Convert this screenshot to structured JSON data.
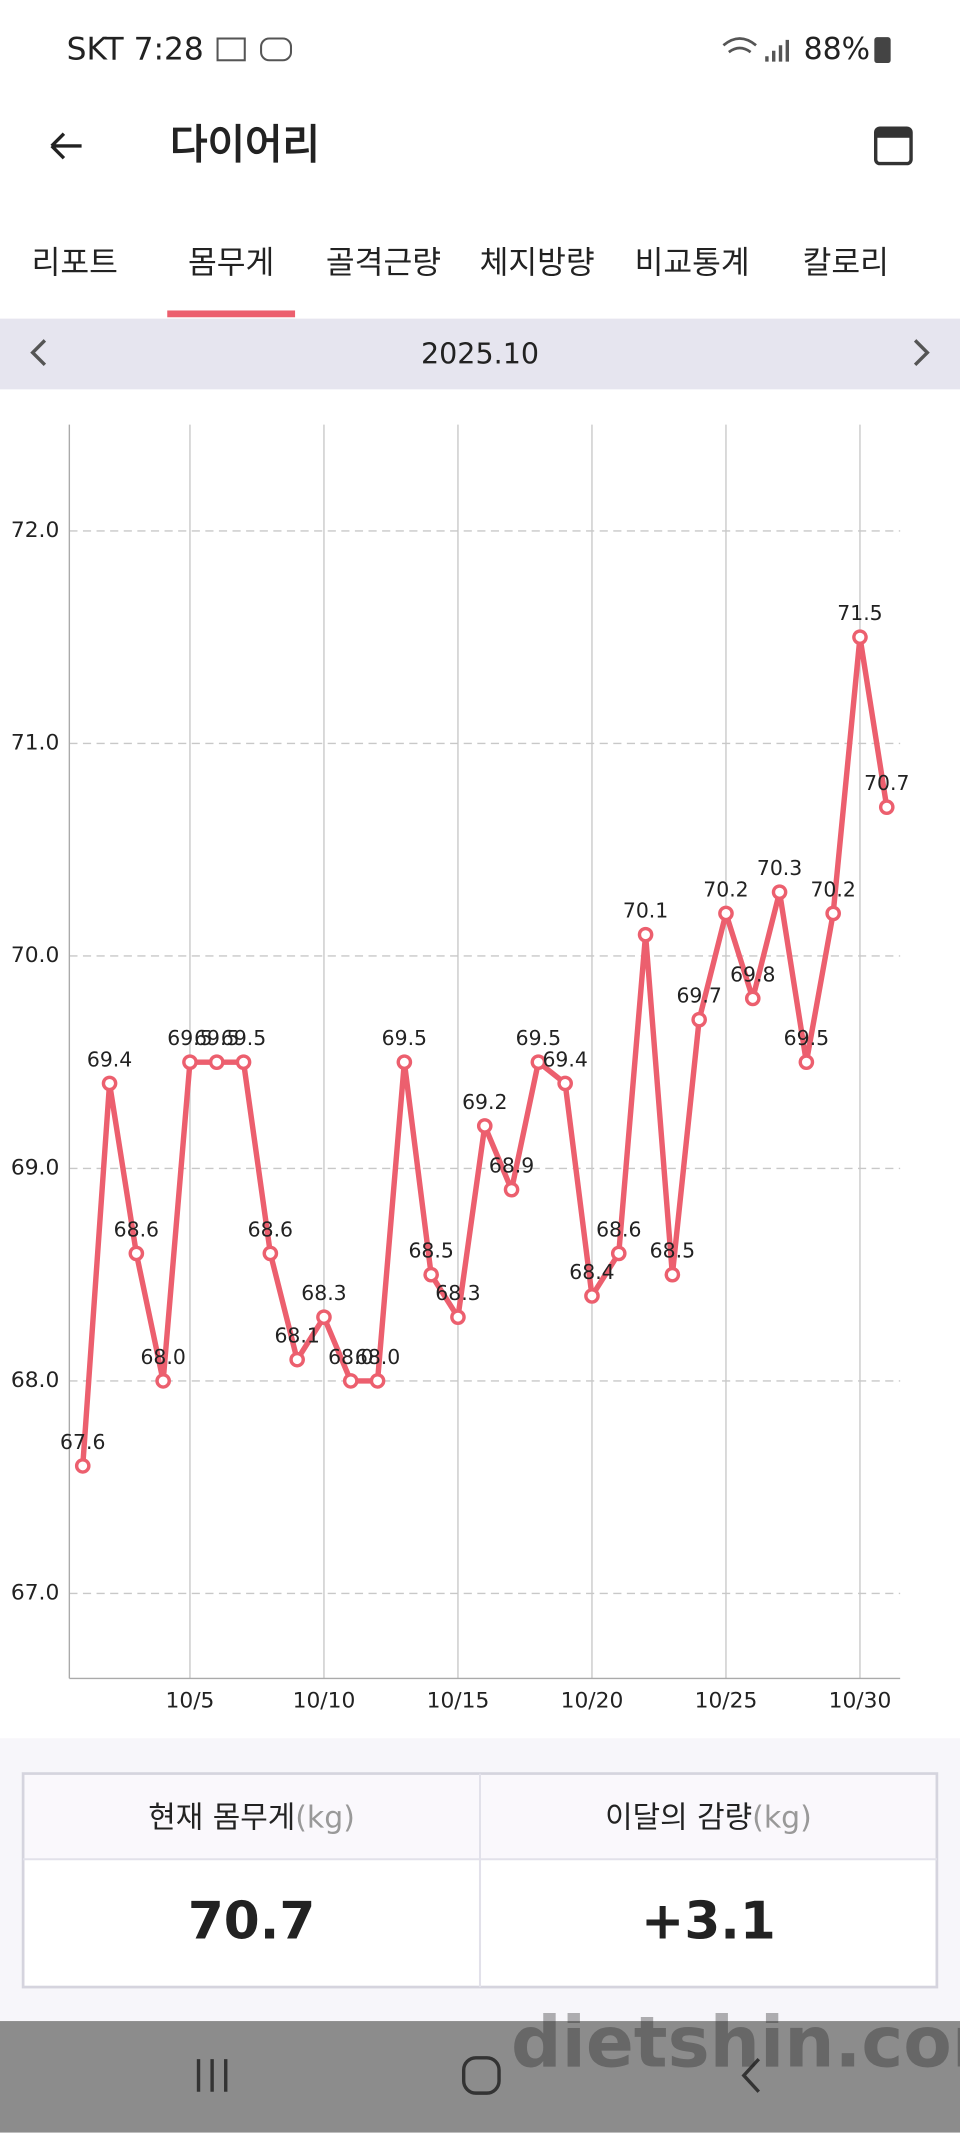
{
  "status_bar": {
    "carrier_time": "SKT 7:28",
    "battery": "88%"
  },
  "header": {
    "title": "다이어리"
  },
  "tabs": [
    "리포트",
    "몸무게",
    "골격근량",
    "체지방량",
    "비교통계",
    "칼로리"
  ],
  "month_nav": {
    "label": "2025.10"
  },
  "chart_data": {
    "type": "line",
    "x": [
      1,
      2,
      3,
      4,
      5,
      6,
      7,
      8,
      9,
      10,
      11,
      12,
      13,
      14,
      15,
      16,
      17,
      18,
      19,
      20,
      21,
      22,
      23,
      24,
      25,
      26,
      27,
      28,
      29,
      30,
      31
    ],
    "values": [
      67.6,
      69.4,
      68.6,
      68.0,
      69.5,
      69.5,
      69.5,
      68.6,
      68.1,
      68.3,
      68.0,
      68.0,
      69.5,
      68.5,
      68.3,
      69.2,
      68.9,
      69.5,
      69.4,
      68.4,
      68.6,
      70.1,
      68.5,
      69.7,
      70.2,
      69.8,
      70.3,
      69.5,
      70.2,
      71.5,
      70.7
    ],
    "value_labels": [
      "67.6",
      "69.4",
      "68.6",
      "68.0",
      "69.5",
      "69.5",
      "69.5",
      "68.6",
      "68.1",
      "68.3",
      "68.0",
      "68.0",
      "69.5",
      "68.5",
      "68.3",
      "69.2",
      "68.9",
      "69.5",
      "69.4",
      "68.4",
      "68.6",
      "70.1",
      "68.5",
      "69.7",
      "70.2",
      "69.8",
      "70.3",
      "69.5",
      "70.2",
      "71.5",
      "70.7"
    ],
    "color": "#ec5f6e",
    "xlim": [
      0.5,
      31.5
    ],
    "ylim": [
      66.6,
      72.5
    ],
    "xticks": [
      {
        "value": 5,
        "label": "10/5"
      },
      {
        "value": 10,
        "label": "10/10"
      },
      {
        "value": 15,
        "label": "10/15"
      },
      {
        "value": 20,
        "label": "10/20"
      },
      {
        "value": 25,
        "label": "10/25"
      },
      {
        "value": 30,
        "label": "10/30"
      }
    ],
    "yticks": [
      {
        "value": 67,
        "label": "67.0"
      },
      {
        "value": 68,
        "label": "68.0"
      },
      {
        "value": 69,
        "label": "69.0"
      },
      {
        "value": 70,
        "label": "70.0"
      },
      {
        "value": 71,
        "label": "71.0"
      },
      {
        "value": 72,
        "label": "72.0"
      }
    ],
    "grid": true
  },
  "summary": {
    "headers": [
      {
        "label": "현재 몸무게",
        "unit": "(kg)"
      },
      {
        "label": "이달의 감량",
        "unit": "(kg)"
      }
    ],
    "values": [
      "70.7",
      "+3.1"
    ]
  },
  "watermark": "dietshin.com"
}
